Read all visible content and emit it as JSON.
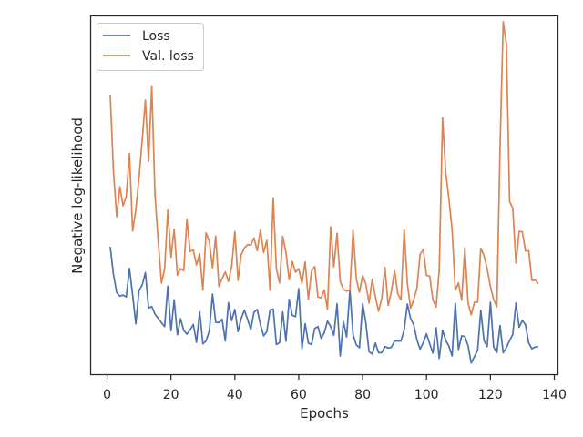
{
  "chart_data": {
    "type": "line",
    "title": "",
    "xlabel": "Epochs",
    "ylabel": "Negative log-likelihood",
    "xlim": [
      -5,
      141
    ],
    "ylim": [
      0,
      1
    ],
    "x_ticks": [
      0,
      20,
      40,
      60,
      80,
      100,
      120,
      140
    ],
    "y_ticks_shown": false,
    "grid": false,
    "legend_position": "top-left",
    "x": [
      1,
      2,
      3,
      4,
      5,
      6,
      7,
      8,
      9,
      10,
      11,
      12,
      13,
      14,
      15,
      16,
      17,
      18,
      19,
      20,
      21,
      22,
      23,
      24,
      25,
      26,
      27,
      28,
      29,
      30,
      31,
      32,
      33,
      34,
      35,
      36,
      37,
      38,
      39,
      40,
      41,
      42,
      43,
      44,
      45,
      46,
      47,
      48,
      49,
      50,
      51,
      52,
      53,
      54,
      55,
      56,
      57,
      58,
      59,
      60,
      61,
      62,
      63,
      64,
      65,
      66,
      67,
      68,
      69,
      70,
      71,
      72,
      73,
      74,
      75,
      76,
      77,
      78,
      79,
      80,
      81,
      82,
      83,
      84,
      85,
      86,
      87,
      88,
      89,
      90,
      91,
      92,
      93,
      94,
      95,
      96,
      97,
      98,
      99,
      100,
      101,
      102,
      103,
      104,
      105,
      106,
      107,
      108,
      109,
      110,
      111,
      112,
      113,
      114,
      115,
      116,
      117,
      118,
      119,
      120,
      121,
      122,
      123,
      124,
      125,
      126,
      127,
      128,
      129,
      130,
      131,
      132,
      133,
      134,
      135
    ],
    "series": [
      {
        "name": "Loss",
        "color": "#4c72b0",
        "values": [
          0.356,
          0.279,
          0.228,
          0.218,
          0.221,
          0.216,
          0.296,
          0.221,
          0.141,
          0.234,
          0.249,
          0.284,
          0.185,
          0.189,
          0.168,
          0.156,
          0.144,
          0.133,
          0.246,
          0.121,
          0.208,
          0.11,
          0.155,
          0.122,
          0.112,
          0.124,
          0.139,
          0.089,
          0.174,
          0.085,
          0.093,
          0.121,
          0.224,
          0.145,
          0.144,
          0.154,
          0.093,
          0.2,
          0.15,
          0.181,
          0.119,
          0.156,
          0.179,
          0.153,
          0.125,
          0.173,
          0.181,
          0.138,
          0.107,
          0.119,
          0.179,
          0.182,
          0.083,
          0.088,
          0.174,
          0.092,
          0.209,
          0.164,
          0.161,
          0.239,
          0.071,
          0.141,
          0.087,
          0.083,
          0.128,
          0.133,
          0.1,
          0.116,
          0.148,
          0.133,
          0.109,
          0.197,
          0.051,
          0.147,
          0.104,
          0.235,
          0.11,
          0.082,
          0.074,
          0.197,
          0.144,
          0.063,
          0.056,
          0.087,
          0.06,
          0.06,
          0.077,
          0.073,
          0.075,
          0.093,
          0.093,
          0.093,
          0.124,
          0.196,
          0.156,
          0.138,
          0.096,
          0.07,
          0.088,
          0.113,
          0.085,
          0.059,
          0.13,
          0.044,
          0.123,
          0.095,
          0.078,
          0.051,
          0.198,
          0.069,
          0.107,
          0.105,
          0.08,
          0.031,
          0.049,
          0.067,
          0.178,
          0.094,
          0.077,
          0.201,
          0.076,
          0.06,
          0.136,
          0.06,
          0.074,
          0.094,
          0.111,
          0.199,
          0.131,
          0.15,
          0.138,
          0.087,
          0.071,
          0.076,
          0.077
        ]
      },
      {
        "name": "Val. loss",
        "color": "#dd8452",
        "values": [
          0.781,
          0.567,
          0.44,
          0.524,
          0.471,
          0.497,
          0.617,
          0.4,
          0.46,
          0.549,
          0.655,
          0.766,
          0.595,
          0.805,
          0.503,
          0.374,
          0.255,
          0.294,
          0.459,
          0.327,
          0.405,
          0.277,
          0.295,
          0.289,
          0.434,
          0.343,
          0.347,
          0.305,
          0.337,
          0.235,
          0.395,
          0.371,
          0.296,
          0.386,
          0.245,
          0.267,
          0.286,
          0.259,
          0.301,
          0.399,
          0.262,
          0.334,
          0.353,
          0.362,
          0.361,
          0.381,
          0.345,
          0.403,
          0.34,
          0.374,
          0.235,
          0.493,
          0.294,
          0.255,
          0.385,
          0.34,
          0.264,
          0.315,
          0.285,
          0.295,
          0.254,
          0.314,
          0.209,
          0.288,
          0.301,
          0.216,
          0.213,
          0.235,
          0.181,
          0.412,
          0.3,
          0.394,
          0.259,
          0.237,
          0.232,
          0.235,
          0.402,
          0.267,
          0.229,
          0.276,
          0.252,
          0.199,
          0.265,
          0.216,
          0.176,
          0.212,
          0.298,
          0.192,
          0.231,
          0.289,
          0.225,
          0.208,
          0.403,
          0.254,
          0.184,
          0.208,
          0.241,
          0.335,
          0.349,
          0.276,
          0.274,
          0.208,
          0.187,
          0.292,
          0.717,
          0.564,
          0.49,
          0.404,
          0.235,
          0.255,
          0.207,
          0.353,
          0.2,
          0.166,
          0.201,
          0.201,
          0.352,
          0.332,
          0.295,
          0.244,
          0.209,
          0.188,
          0.629,
          0.985,
          0.923,
          0.483,
          0.464,
          0.311,
          0.399,
          0.398,
          0.344,
          0.345,
          0.262,
          0.263,
          0.253
        ]
      }
    ]
  }
}
